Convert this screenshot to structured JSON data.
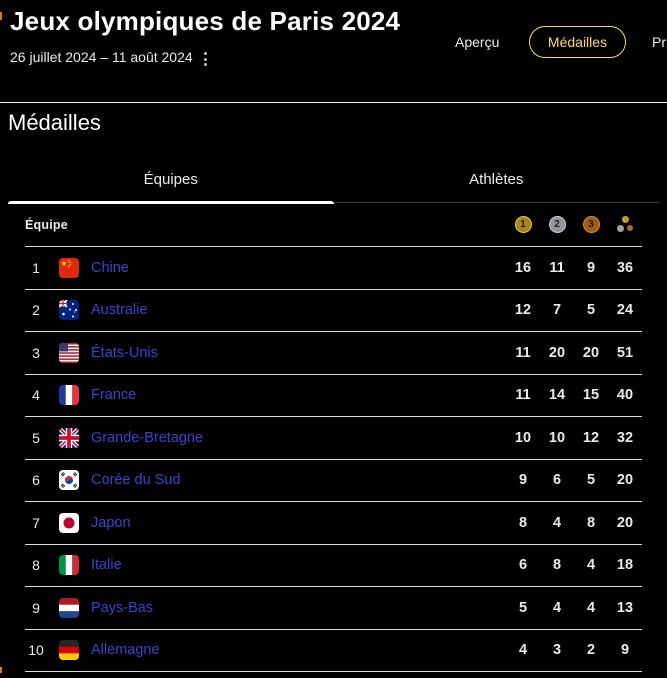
{
  "header": {
    "title": "Jeux olympiques de Paris 2024",
    "date_range": "26 juillet 2024 – 11 août 2024",
    "nav": [
      {
        "label": "Aperçu",
        "active": false
      },
      {
        "label": "Médailles",
        "active": true
      },
      {
        "label": "Pr",
        "active": false
      }
    ]
  },
  "section": {
    "title": "Médailles"
  },
  "tabs": [
    {
      "label": "Équipes",
      "active": true
    },
    {
      "label": "Athlètes",
      "active": false
    }
  ],
  "table": {
    "team_header": "Équipe",
    "medal_headers": [
      {
        "name": "gold-medal-icon",
        "label": "1"
      },
      {
        "name": "silver-medal-icon",
        "label": "2"
      },
      {
        "name": "bronze-medal-icon",
        "label": "3"
      },
      {
        "name": "total-medals-icon",
        "label": ""
      }
    ],
    "rows": [
      {
        "rank": "1",
        "flag": "cn",
        "team": "Chine",
        "gold": "16",
        "silver": "11",
        "bronze": "9",
        "total": "36"
      },
      {
        "rank": "2",
        "flag": "au",
        "team": "Australie",
        "gold": "12",
        "silver": "7",
        "bronze": "5",
        "total": "24"
      },
      {
        "rank": "3",
        "flag": "us",
        "team": "États-Unis",
        "gold": "11",
        "silver": "20",
        "bronze": "20",
        "total": "51"
      },
      {
        "rank": "4",
        "flag": "fr",
        "team": "France",
        "gold": "11",
        "silver": "14",
        "bronze": "15",
        "total": "40"
      },
      {
        "rank": "5",
        "flag": "gb",
        "team": "Grande-Bretagne",
        "gold": "10",
        "silver": "10",
        "bronze": "12",
        "total": "32"
      },
      {
        "rank": "6",
        "flag": "kr",
        "team": "Corée du Sud",
        "gold": "9",
        "silver": "6",
        "bronze": "5",
        "total": "20"
      },
      {
        "rank": "7",
        "flag": "jp",
        "team": "Japon",
        "gold": "8",
        "silver": "4",
        "bronze": "8",
        "total": "20"
      },
      {
        "rank": "8",
        "flag": "it",
        "team": "Italie",
        "gold": "6",
        "silver": "8",
        "bronze": "4",
        "total": "18"
      },
      {
        "rank": "9",
        "flag": "nl",
        "team": "Pays-Bas",
        "gold": "5",
        "silver": "4",
        "bronze": "4",
        "total": "13"
      },
      {
        "rank": "10",
        "flag": "de",
        "team": "Allemagne",
        "gold": "4",
        "silver": "3",
        "bronze": "2",
        "total": "9"
      }
    ]
  },
  "colors": {
    "accent_yellow": "#fcd85f",
    "link_blue": "#3c43cd",
    "gold": "#a8861d",
    "silver": "#8f959b",
    "bronze": "#a35d13",
    "background": "#010101"
  }
}
